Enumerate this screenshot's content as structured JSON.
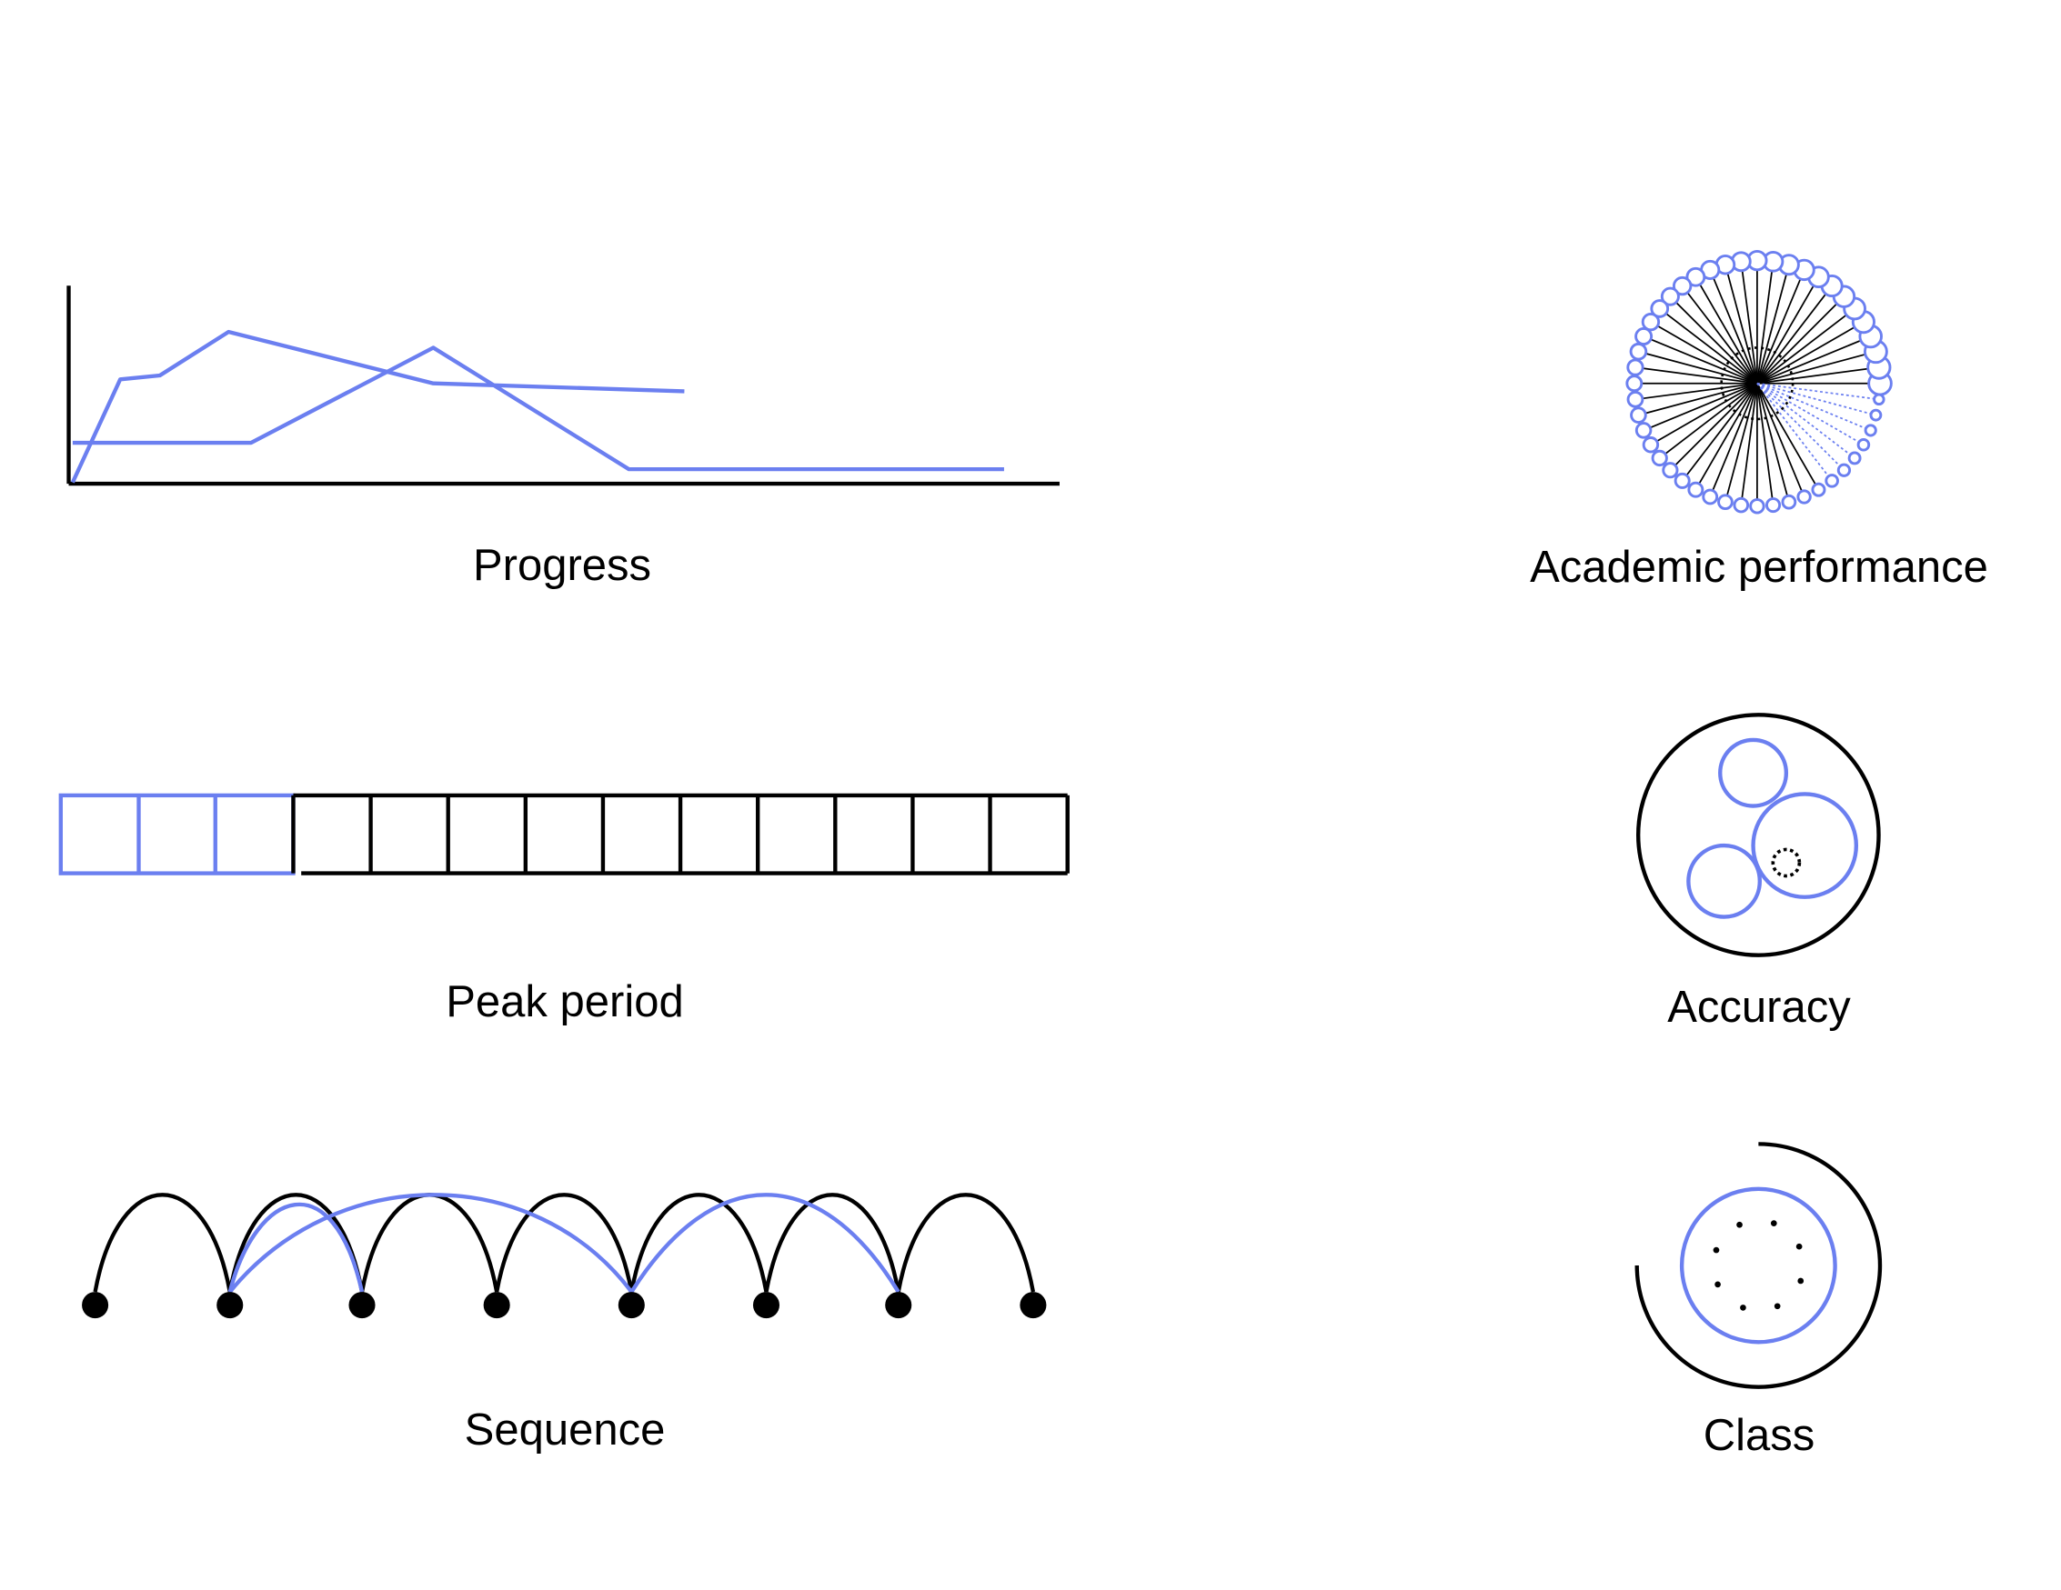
{
  "colors": {
    "accent": "#6b7ff0",
    "ink": "#000000",
    "background": "#ffffff"
  },
  "captions": {
    "progress": "Progress",
    "peak_period": "Peak period",
    "sequence": "Sequence",
    "academic_performance": "Academic performance",
    "accuracy": "Accuracy",
    "class": "Class"
  }
}
